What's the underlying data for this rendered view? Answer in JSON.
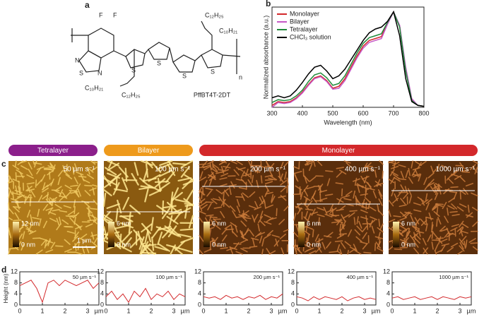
{
  "panel_labels": [
    "a",
    "b",
    "c",
    "d"
  ],
  "structure": {
    "atoms": [
      "F",
      "F",
      "N",
      "S",
      "N",
      "S",
      "S",
      "S",
      "S",
      "n"
    ],
    "side_chains": [
      "C₁₂H₂₅",
      "C₁₀H₂₁",
      "C₁₀H₂₁",
      "C₁₂H₂₅"
    ],
    "name": "PffBT4T-2DT"
  },
  "groups": [
    {
      "label": "Tetralayer",
      "color": "#8b1f8b"
    },
    {
      "label": "Bilayer",
      "color": "#ee9a1c"
    },
    {
      "label": "Monolayer",
      "color": "#d3282b"
    }
  ],
  "afm": [
    {
      "speed": "50 µm s⁻¹",
      "scale_max": "12 nm",
      "scale_min": "0 nm"
    },
    {
      "speed": "100 µm s⁻¹",
      "scale_max": "6 nm",
      "scale_min": "0 nm"
    },
    {
      "speed": "200 µm s⁻¹",
      "scale_max": "6 nm",
      "scale_min": "0 nm"
    },
    {
      "speed": "400 µm s⁻¹",
      "scale_max": "6 nm",
      "scale_min": "0 nm"
    },
    {
      "speed": "1000 µm s⁻¹",
      "scale_max": "6 nm",
      "scale_min": "0 nm"
    }
  ],
  "scale_bar": "1 µm",
  "chart_data": [
    {
      "type": "line",
      "xlabel": "Wavelength (nm)",
      "ylabel": "Normalized absorbance (a.u.)",
      "x": [
        300,
        320,
        340,
        360,
        380,
        400,
        420,
        440,
        460,
        480,
        500,
        520,
        540,
        560,
        580,
        600,
        620,
        640,
        660,
        680,
        700,
        720,
        740,
        760,
        780,
        800
      ],
      "xlim": [
        300,
        800
      ],
      "xticks": [
        300,
        400,
        500,
        600,
        700,
        800
      ],
      "ylim": [
        0,
        1.05
      ],
      "legend": "upper-left",
      "series": [
        {
          "name": "Monolayer",
          "color": "#d3282b",
          "values": [
            0.02,
            0.06,
            0.05,
            0.06,
            0.1,
            0.16,
            0.24,
            0.31,
            0.33,
            0.28,
            0.2,
            0.22,
            0.3,
            0.42,
            0.54,
            0.64,
            0.7,
            0.72,
            0.74,
            0.88,
            1.0,
            0.85,
            0.4,
            0.08,
            0.02,
            0.01
          ]
        },
        {
          "name": "Bilayer",
          "color": "#c659c6",
          "values": [
            0.0,
            0.05,
            0.04,
            0.05,
            0.09,
            0.15,
            0.23,
            0.3,
            0.32,
            0.27,
            0.19,
            0.2,
            0.28,
            0.4,
            0.52,
            0.62,
            0.68,
            0.7,
            0.72,
            0.87,
            1.0,
            0.86,
            0.42,
            0.09,
            0.02,
            0.01
          ]
        },
        {
          "name": "Tetralayer",
          "color": "#1f8a3a",
          "values": [
            0.05,
            0.08,
            0.07,
            0.08,
            0.12,
            0.18,
            0.27,
            0.34,
            0.36,
            0.31,
            0.23,
            0.25,
            0.33,
            0.45,
            0.57,
            0.67,
            0.73,
            0.75,
            0.77,
            0.89,
            1.0,
            0.84,
            0.38,
            0.07,
            0.02,
            0.01
          ]
        },
        {
          "name": "CHCl₃ solution",
          "color": "#000000",
          "values": [
            0.1,
            0.12,
            0.1,
            0.12,
            0.18,
            0.26,
            0.35,
            0.42,
            0.44,
            0.38,
            0.3,
            0.33,
            0.4,
            0.5,
            0.6,
            0.7,
            0.78,
            0.82,
            0.84,
            0.9,
            1.0,
            0.75,
            0.3,
            0.06,
            0.02,
            0.01
          ]
        }
      ]
    },
    {
      "type": "line",
      "title": "50 µm s⁻¹",
      "ylabel": "Height (nm)",
      "x_unit": "µm",
      "color": "#d3282b",
      "x": [
        0,
        0.25,
        0.5,
        0.75,
        1,
        1.25,
        1.5,
        1.75,
        2,
        2.25,
        2.5,
        2.75,
        3,
        3.25,
        3.5
      ],
      "xlim": [
        0,
        3.5
      ],
      "xticks": [
        0,
        1,
        2,
        3
      ],
      "ylim": [
        0,
        12
      ],
      "yticks": [
        0,
        4,
        8,
        12
      ],
      "values": [
        7,
        8,
        9,
        6,
        1,
        8,
        9,
        7,
        9,
        8,
        7,
        8,
        9,
        6,
        8
      ]
    },
    {
      "type": "line",
      "title": "100 µm s⁻¹",
      "x_unit": "µm",
      "color": "#d3282b",
      "x": [
        0,
        0.25,
        0.5,
        0.75,
        1,
        1.25,
        1.5,
        1.75,
        2,
        2.25,
        2.5,
        2.75,
        3,
        3.25,
        3.5
      ],
      "xlim": [
        0,
        3.5
      ],
      "xticks": [
        0,
        1,
        2,
        3
      ],
      "ylim": [
        0,
        12
      ],
      "yticks": [
        0,
        4,
        8,
        12
      ],
      "values": [
        3,
        5,
        2,
        4,
        1,
        5,
        3,
        6,
        2,
        4,
        3,
        5,
        2,
        4,
        3
      ]
    },
    {
      "type": "line",
      "title": "200 µm s⁻¹",
      "x_unit": "µm",
      "color": "#d3282b",
      "x": [
        0,
        0.25,
        0.5,
        0.75,
        1,
        1.25,
        1.5,
        1.75,
        2,
        2.25,
        2.5,
        2.75,
        3,
        3.25,
        3.5
      ],
      "xlim": [
        0,
        3.5
      ],
      "xticks": [
        0,
        1,
        2,
        3
      ],
      "ylim": [
        0,
        12
      ],
      "yticks": [
        0,
        4,
        8,
        12
      ],
      "values": [
        3,
        2.5,
        3,
        2,
        3.5,
        2.5,
        3,
        2,
        3,
        2.5,
        3.5,
        2,
        3,
        2.5,
        4
      ]
    },
    {
      "type": "line",
      "title": "400 µm s⁻¹",
      "x_unit": "µm",
      "color": "#d3282b",
      "x": [
        0,
        0.25,
        0.5,
        0.75,
        1,
        1.25,
        1.5,
        1.75,
        2,
        2.25,
        2.5,
        2.75,
        3,
        3.25,
        3.5
      ],
      "xlim": [
        0,
        3.5
      ],
      "xticks": [
        0,
        1,
        2,
        3
      ],
      "ylim": [
        0,
        12
      ],
      "yticks": [
        0,
        4,
        8,
        12
      ],
      "values": [
        3,
        2.5,
        1.5,
        3,
        2,
        3,
        2.5,
        2,
        3,
        1.5,
        2.5,
        3,
        2,
        2.5,
        2
      ]
    },
    {
      "type": "line",
      "title": "1000 µm s⁻¹",
      "x_unit": "µm",
      "color": "#d3282b",
      "x": [
        0,
        0.25,
        0.5,
        0.75,
        1,
        1.25,
        1.5,
        1.75,
        2,
        2.25,
        2.5,
        2.75,
        3,
        3.25,
        3.5
      ],
      "xlim": [
        0,
        3.5
      ],
      "xticks": [
        0,
        1,
        2,
        3
      ],
      "ylim": [
        0,
        12
      ],
      "yticks": [
        0,
        4,
        8,
        12
      ],
      "values": [
        2.5,
        3,
        2,
        2.5,
        3,
        2,
        2.5,
        3,
        2,
        3,
        2.5,
        2,
        3,
        2.5,
        3
      ]
    }
  ]
}
